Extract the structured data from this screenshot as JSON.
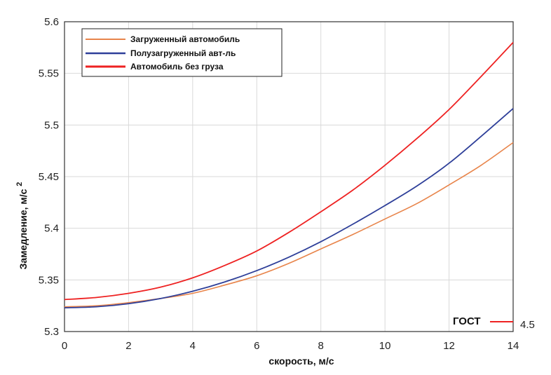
{
  "chart_data": {
    "type": "line",
    "xlabel": "скорость, м/с",
    "ylabel": "Замедление, м/с",
    "ylabel_superscript": "2",
    "xlim": [
      0,
      14
    ],
    "ylim": [
      5.3,
      5.6
    ],
    "xticks": [
      "0",
      "2",
      "4",
      "6",
      "8",
      "10",
      "12",
      "14"
    ],
    "yticks": [
      "5.3",
      "5.35",
      "5.4",
      "5.45",
      "5.5",
      "5.55",
      "5.6"
    ],
    "grid": true,
    "legend_position": "top-left",
    "series": [
      {
        "name": "Загруженный автомобиль",
        "color": "#e8844a",
        "x": [
          0,
          1,
          2,
          3,
          4,
          5,
          6,
          7,
          8,
          9,
          10,
          11,
          12,
          13,
          14
        ],
        "y": [
          5.324,
          5.325,
          5.328,
          5.332,
          5.337,
          5.345,
          5.354,
          5.366,
          5.38,
          5.394,
          5.409,
          5.424,
          5.442,
          5.461,
          5.483
        ]
      },
      {
        "name": "Полузагруженный авт-ль",
        "color": "#2e3f99",
        "x": [
          0,
          1,
          2,
          3,
          4,
          5,
          6,
          7,
          8,
          9,
          10,
          11,
          12,
          13,
          14
        ],
        "y": [
          5.323,
          5.324,
          5.327,
          5.332,
          5.339,
          5.348,
          5.359,
          5.372,
          5.387,
          5.404,
          5.422,
          5.441,
          5.463,
          5.489,
          5.516
        ]
      },
      {
        "name": "Автомобиль без груза",
        "color": "#ee2222",
        "x": [
          0,
          1,
          2,
          3,
          4,
          5,
          6,
          7,
          8,
          9,
          10,
          11,
          12,
          13,
          14
        ],
        "y": [
          5.331,
          5.333,
          5.337,
          5.343,
          5.352,
          5.364,
          5.378,
          5.396,
          5.416,
          5.437,
          5.461,
          5.487,
          5.515,
          5.547,
          5.58
        ]
      }
    ],
    "annotation": {
      "label": "ГОСТ",
      "value": "4.5",
      "color": "#ee2222"
    }
  }
}
